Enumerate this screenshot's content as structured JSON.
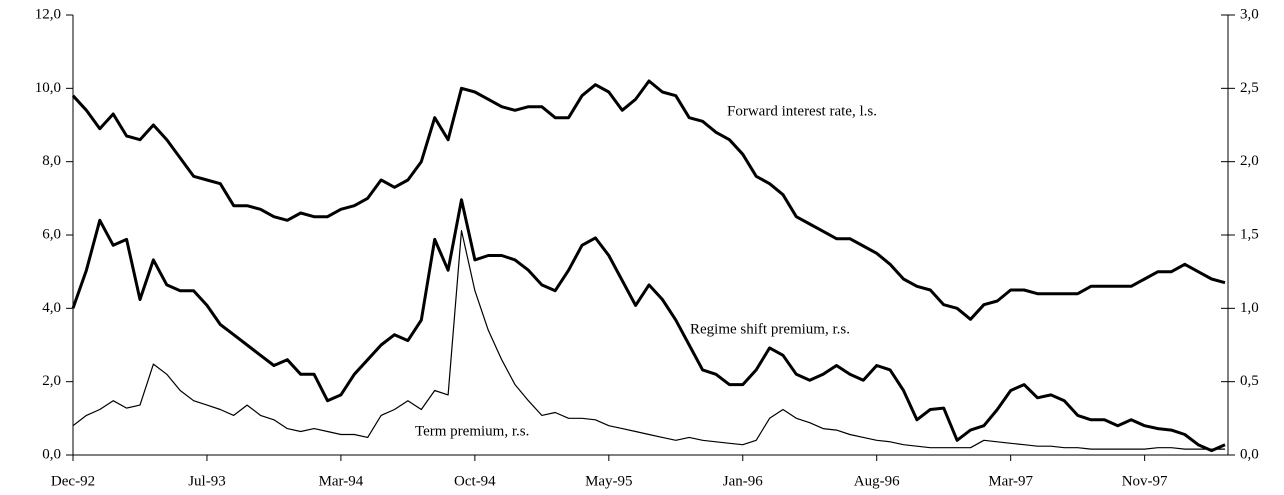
{
  "chart_data": {
    "type": "line",
    "categories": [
      "Dec-92",
      null,
      null,
      null,
      null,
      null,
      null,
      null,
      null,
      null,
      "Jul-93",
      null,
      null,
      null,
      null,
      null,
      null,
      null,
      null,
      null,
      "Mar-94",
      null,
      null,
      null,
      null,
      null,
      null,
      null,
      null,
      null,
      "Oct-94",
      null,
      null,
      null,
      null,
      null,
      null,
      null,
      null,
      null,
      "May-95",
      null,
      null,
      null,
      null,
      null,
      null,
      null,
      null,
      null,
      "Jan-96",
      null,
      null,
      null,
      null,
      null,
      null,
      null,
      null,
      null,
      "Aug-96",
      null,
      null,
      null,
      null,
      null,
      null,
      null,
      null,
      null,
      "Mar-97",
      null,
      null,
      null,
      null,
      null,
      null,
      null,
      null,
      null,
      "Nov-97",
      null,
      null,
      null,
      null,
      null,
      null
    ],
    "series": [
      {
        "name": "Forward interest rate, l.s.",
        "color": "#000000",
        "width": 3,
        "axis": "y",
        "values": [
          9.8,
          9.4,
          8.9,
          9.3,
          8.7,
          8.6,
          9.0,
          8.6,
          8.1,
          7.6,
          7.5,
          7.4,
          6.8,
          6.8,
          6.7,
          6.5,
          6.4,
          6.6,
          6.5,
          6.5,
          6.7,
          6.8,
          7.0,
          7.5,
          7.3,
          7.5,
          8.0,
          9.2,
          8.6,
          10.0,
          9.9,
          9.7,
          9.5,
          9.4,
          9.5,
          9.5,
          9.2,
          9.2,
          9.8,
          10.1,
          9.9,
          9.4,
          9.7,
          10.2,
          9.9,
          9.8,
          9.2,
          9.1,
          8.8,
          8.6,
          8.2,
          7.6,
          7.4,
          7.1,
          6.5,
          6.3,
          6.1,
          5.9,
          5.9,
          5.7,
          5.5,
          5.2,
          4.8,
          4.6,
          4.5,
          4.1,
          4.0,
          3.7,
          4.1,
          4.2,
          4.5,
          4.5,
          4.4,
          4.4,
          4.4,
          4.4,
          4.6,
          4.6,
          4.6,
          4.6,
          4.8,
          5.0,
          5.0,
          5.2,
          5.0,
          4.8,
          4.7
        ]
      },
      {
        "name": "Regime shift premium, r.s.",
        "color": "#000000",
        "width": 3,
        "axis": "y2",
        "values": [
          1.0,
          1.26,
          1.6,
          1.43,
          1.47,
          1.06,
          1.33,
          1.16,
          1.12,
          1.12,
          1.02,
          0.89,
          0.82,
          0.75,
          0.68,
          0.61,
          0.65,
          0.55,
          0.55,
          0.37,
          0.41,
          0.55,
          0.65,
          0.75,
          0.82,
          0.78,
          0.92,
          1.47,
          1.26,
          1.74,
          1.33,
          1.36,
          1.36,
          1.33,
          1.26,
          1.16,
          1.12,
          1.26,
          1.43,
          1.48,
          1.36,
          1.19,
          1.02,
          1.16,
          1.06,
          0.92,
          0.75,
          0.58,
          0.55,
          0.48,
          0.48,
          0.58,
          0.73,
          0.68,
          0.55,
          0.51,
          0.55,
          0.61,
          0.55,
          0.51,
          0.61,
          0.58,
          0.44,
          0.24,
          0.31,
          0.32,
          0.1,
          0.17,
          0.2,
          0.31,
          0.44,
          0.48,
          0.39,
          0.41,
          0.37,
          0.27,
          0.24,
          0.24,
          0.2,
          0.24,
          0.2,
          0.18,
          0.17,
          0.14,
          0.07,
          0.03,
          0.07
        ]
      },
      {
        "name": "Term premium, r.s.",
        "color": "#000000",
        "width": 1.2,
        "axis": "y2",
        "values": [
          0.2,
          0.27,
          0.31,
          0.37,
          0.32,
          0.34,
          0.62,
          0.55,
          0.44,
          0.37,
          0.34,
          0.31,
          0.27,
          0.34,
          0.27,
          0.24,
          0.18,
          0.16,
          0.18,
          0.16,
          0.14,
          0.14,
          0.12,
          0.27,
          0.31,
          0.37,
          0.31,
          0.44,
          0.41,
          1.53,
          1.12,
          0.85,
          0.65,
          0.48,
          0.37,
          0.27,
          0.29,
          0.25,
          0.25,
          0.24,
          0.2,
          0.18,
          0.16,
          0.14,
          0.12,
          0.1,
          0.12,
          0.1,
          0.09,
          0.08,
          0.07,
          0.1,
          0.25,
          0.31,
          0.25,
          0.22,
          0.18,
          0.17,
          0.14,
          0.12,
          0.1,
          0.09,
          0.07,
          0.06,
          0.05,
          0.05,
          0.05,
          0.05,
          0.1,
          0.09,
          0.08,
          0.07,
          0.06,
          0.06,
          0.05,
          0.05,
          0.04,
          0.04,
          0.04,
          0.04,
          0.04,
          0.05,
          0.05,
          0.04,
          0.04,
          0.04,
          0.04
        ]
      }
    ],
    "ylim": [
      0,
      12
    ],
    "yticks": [
      {
        "value": 0,
        "label": "0,0"
      },
      {
        "value": 2,
        "label": "2,0"
      },
      {
        "value": 4,
        "label": "4,0"
      },
      {
        "value": 6,
        "label": "6,0"
      },
      {
        "value": 8,
        "label": "8,0"
      },
      {
        "value": 10,
        "label": "10,0"
      },
      {
        "value": 12,
        "label": "12,0"
      }
    ],
    "y2lim": [
      0,
      3
    ],
    "y2ticks": [
      {
        "value": 0,
        "label": "0,0"
      },
      {
        "value": 0.5,
        "label": "0,5"
      },
      {
        "value": 1,
        "label": "1,0"
      },
      {
        "value": 1.5,
        "label": "1,5"
      },
      {
        "value": 2,
        "label": "2,0"
      },
      {
        "value": 2.5,
        "label": "2,5"
      },
      {
        "value": 3,
        "label": "3,0"
      }
    ],
    "grid": false
  }
}
